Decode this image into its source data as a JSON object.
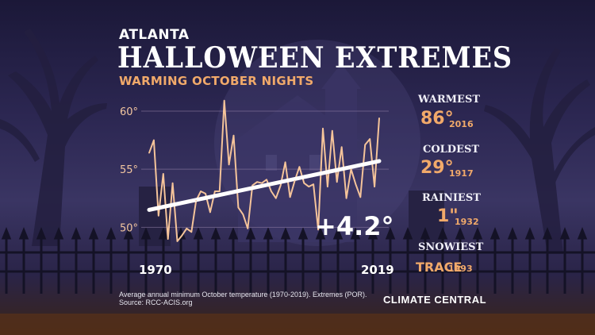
{
  "header": {
    "city": "ATLANTA",
    "title": "HALLOWEEN EXTREMES",
    "subtitle": "WARMING OCTOBER NIGHTS"
  },
  "extremes": [
    {
      "label": "WARMEST",
      "value": "86°",
      "year": "2016"
    },
    {
      "label": "COLDEST",
      "value": "29°",
      "year": "1917"
    },
    {
      "label": "RAINIEST",
      "value": "1\"",
      "year": "1932"
    },
    {
      "label": "SNOWIEST",
      "value": "TRACE",
      "year": "1993"
    }
  ],
  "trend_change": "+4.2°",
  "footnote": {
    "line1": "Average annual minimum October temperature (1970-2019). Extremes (POR).",
    "line2": "Source: RCC-ACIS.org"
  },
  "brand": "CLIMATE CENTRAL",
  "colors": {
    "accent": "#f1a96a",
    "line": "#f5c49a",
    "trend": "#ffffff"
  },
  "chart_data": {
    "type": "line",
    "x_labels": [
      "1970",
      "2019"
    ],
    "y_ticks": [
      "50°",
      "55°",
      "60°"
    ],
    "ylim": [
      47.7,
      61.5
    ],
    "xlim": [
      1970,
      2019
    ],
    "grid": true,
    "series": [
      {
        "values": [
          [
            1970,
            56.4
          ],
          [
            1971,
            57.5
          ],
          [
            1972,
            51.0
          ],
          [
            1973,
            54.6
          ],
          [
            1974,
            49.0
          ],
          [
            1975,
            53.8
          ],
          [
            1976,
            48.8
          ],
          [
            1977,
            49.3
          ],
          [
            1978,
            49.9
          ],
          [
            1979,
            49.6
          ],
          [
            1980,
            52.3
          ],
          [
            1981,
            53.1
          ],
          [
            1982,
            52.9
          ],
          [
            1983,
            51.3
          ],
          [
            1984,
            53.1
          ],
          [
            1985,
            53.1
          ],
          [
            1986,
            60.9
          ],
          [
            1987,
            55.4
          ],
          [
            1988,
            57.9
          ],
          [
            1989,
            51.7
          ],
          [
            1990,
            51.1
          ],
          [
            1991,
            49.9
          ],
          [
            1992,
            53.6
          ],
          [
            1993,
            53.9
          ],
          [
            1994,
            53.8
          ],
          [
            1995,
            54.1
          ],
          [
            1996,
            53.1
          ],
          [
            1997,
            52.5
          ],
          [
            1998,
            53.6
          ],
          [
            1999,
            55.6
          ],
          [
            2000,
            52.6
          ],
          [
            2001,
            54.0
          ],
          [
            2002,
            55.2
          ],
          [
            2003,
            53.8
          ],
          [
            2004,
            53.5
          ],
          [
            2005,
            53.7
          ],
          [
            2006,
            49.8
          ],
          [
            2007,
            58.5
          ],
          [
            2008,
            53.5
          ],
          [
            2009,
            58.3
          ],
          [
            2010,
            53.9
          ],
          [
            2011,
            56.9
          ],
          [
            2012,
            52.5
          ],
          [
            2013,
            55.0
          ],
          [
            2014,
            53.7
          ],
          [
            2015,
            52.6
          ],
          [
            2016,
            57.1
          ],
          [
            2017,
            57.6
          ],
          [
            2018,
            53.5
          ],
          [
            2019,
            59.4
          ]
        ]
      }
    ],
    "trend": {
      "start": [
        1970,
        51.5
      ],
      "end": [
        2019,
        55.7
      ]
    }
  }
}
